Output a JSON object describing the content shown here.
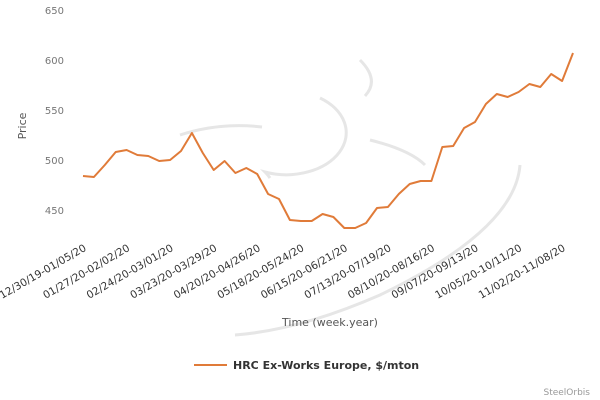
{
  "chart_data": {
    "type": "line",
    "ylabel": "Price",
    "xlabel": "Time (week.year)",
    "ylim": [
      430,
      650
    ],
    "yticks": [
      450,
      500,
      550,
      600,
      650
    ],
    "grid": false,
    "legend_position": "bottom",
    "credit": "SteelOrbis",
    "xtick_labels": [
      "12/30/19-01/05/20",
      "01/27/20-02/02/20",
      "02/24/20-03/01/20",
      "03/23/20-03/29/20",
      "04/20/20-04/26/20",
      "05/18/20-05/24/20",
      "06/15/20-06/21/20",
      "07/13/20-07/19/20",
      "08/10/20-08/16/20",
      "09/07/20-09/13/20",
      "10/05/20-10/11/20",
      "11/02/20-11/08/20"
    ],
    "xtick_week_index": [
      0,
      4,
      8,
      12,
      16,
      20,
      24,
      28,
      32,
      36,
      40,
      44
    ],
    "series": [
      {
        "name": "HRC Ex-Works Europe, $/mton",
        "color": "#e07b39",
        "values": [
          484,
          483,
          495,
          508,
          510,
          505,
          504,
          499,
          500,
          509,
          527,
          507,
          490,
          499,
          487,
          492,
          486,
          466,
          461,
          440,
          439,
          439,
          446,
          443,
          432,
          432,
          437,
          452,
          453,
          466,
          476,
          479,
          479,
          513,
          514,
          532,
          538,
          556,
          566,
          563,
          568,
          576,
          573,
          586,
          579,
          607
        ]
      }
    ]
  }
}
